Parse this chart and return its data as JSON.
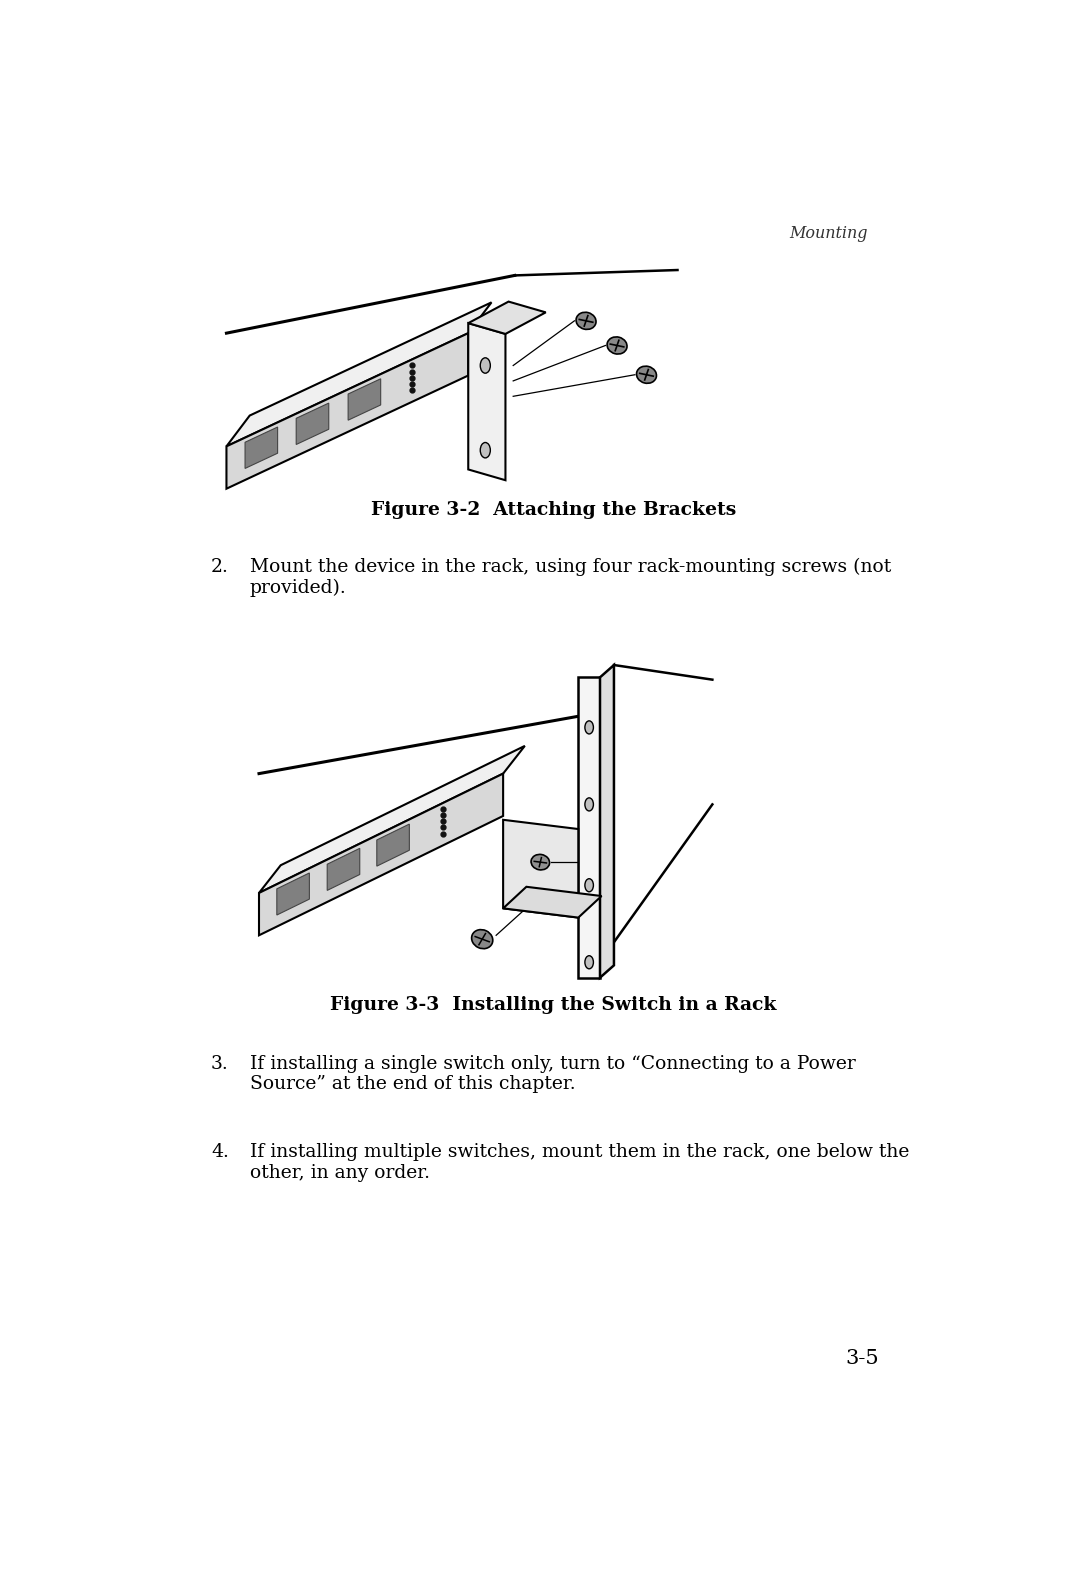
{
  "bg_color": "#ffffff",
  "header_text": "Mounting",
  "fig1_caption": "Figure 3-2  Attaching the Brackets",
  "fig2_caption": "Figure 3-3  Installing the Switch in a Rack",
  "item2_num": "2.",
  "item2_text": "Mount the device in the rack, using four rack-mounting screws (not\nprovided).",
  "item3_num": "3.",
  "item3_text": "If installing a single switch only, turn to “Connecting to a Power\nSource” at the end of this chapter.",
  "item4_num": "4.",
  "item4_text": "If installing multiple switches, mount them in the rack, one below the\nother, in any order.",
  "page_num": "3-5",
  "body_font_size": 13.5,
  "caption_font_size": 13.5,
  "header_font_size": 11.5
}
